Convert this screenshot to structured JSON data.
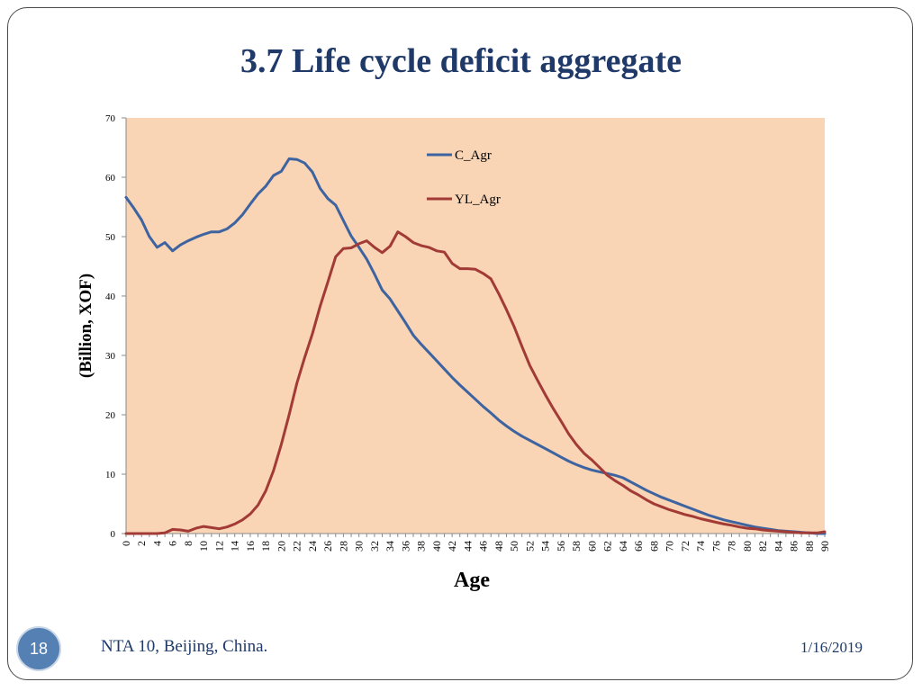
{
  "slide": {
    "title": "3.7 Life cycle deficit aggregate",
    "page_number": "18",
    "footer": "NTA 10, Beijing, China.",
    "date": "1/16/2019"
  },
  "colors": {
    "plot_background": "#f9d4b5",
    "c_agr": "#3d64a0",
    "yl_agr": "#a23a35",
    "axis": "#8a8a8a"
  },
  "chart_data": {
    "type": "line",
    "title": "3.7 Life cycle deficit aggregate",
    "xlabel": "Age",
    "ylabel": "(Billion, XOF)",
    "xlim": [
      0,
      90
    ],
    "ylim": [
      0,
      70
    ],
    "y_ticks": [
      "0",
      "10",
      "20",
      "30",
      "40",
      "50",
      "60",
      "70"
    ],
    "x_ticks": [
      "0",
      "2",
      "4",
      "6",
      "8",
      "10",
      "12",
      "14",
      "16",
      "18",
      "20",
      "22",
      "24",
      "26",
      "28",
      "30",
      "32",
      "34",
      "36",
      "38",
      "40",
      "42",
      "44",
      "46",
      "48",
      "50",
      "52",
      "54",
      "56",
      "58",
      "60",
      "62",
      "64",
      "66",
      "68",
      "70",
      "72",
      "74",
      "76",
      "78",
      "80",
      "82",
      "84",
      "86",
      "88",
      "90"
    ],
    "legend": "top-left inside plot",
    "series": [
      {
        "name": "C_Agr",
        "values": [
          56.6,
          54.8,
          52.8,
          50.0,
          48.2,
          49.0,
          47.6,
          48.6,
          49.3,
          49.9,
          50.4,
          50.8,
          50.8,
          51.3,
          52.3,
          53.7,
          55.5,
          57.2,
          58.5,
          60.3,
          61.0,
          63.1,
          63.0,
          62.4,
          60.9,
          58.1,
          56.4,
          55.3,
          52.7,
          50.1,
          48.2,
          46.2,
          43.7,
          41.0,
          39.5,
          37.5,
          35.5,
          33.4,
          31.9,
          30.5,
          29.1,
          27.7,
          26.3,
          25.0,
          23.8,
          22.6,
          21.4,
          20.3,
          19.1,
          18.1,
          17.2,
          16.4,
          15.7,
          15.0,
          14.3,
          13.6,
          12.9,
          12.2,
          11.6,
          11.1,
          10.7,
          10.4,
          10.1,
          9.8,
          9.4,
          8.7,
          8.0,
          7.3,
          6.7,
          6.1,
          5.6,
          5.1,
          4.6,
          4.1,
          3.6,
          3.1,
          2.7,
          2.3,
          2.0,
          1.7,
          1.4,
          1.1,
          0.9,
          0.7,
          0.5,
          0.4,
          0.3,
          0.2,
          0.1,
          0.0,
          0.0
        ]
      },
      {
        "name": "YL_Agr",
        "values": [
          0.0,
          0.0,
          0.0,
          0.0,
          0.0,
          0.1,
          0.7,
          0.6,
          0.4,
          0.9,
          1.2,
          1.0,
          0.8,
          1.1,
          1.6,
          2.3,
          3.3,
          4.8,
          7.2,
          10.6,
          15.0,
          20.0,
          25.3,
          29.6,
          33.6,
          38.3,
          42.4,
          46.6,
          48.0,
          48.1,
          48.8,
          49.3,
          48.2,
          47.3,
          48.4,
          50.8,
          50.0,
          49.0,
          48.5,
          48.2,
          47.6,
          47.4,
          45.5,
          44.6,
          44.6,
          44.5,
          43.8,
          42.9,
          40.4,
          37.7,
          34.8,
          31.5,
          28.3,
          25.8,
          23.4,
          21.1,
          19.0,
          16.8,
          15.0,
          13.5,
          12.4,
          11.1,
          9.8,
          8.9,
          8.1,
          7.2,
          6.5,
          5.7,
          5.0,
          4.5,
          4.0,
          3.6,
          3.2,
          2.9,
          2.5,
          2.2,
          1.9,
          1.6,
          1.4,
          1.1,
          0.9,
          0.8,
          0.6,
          0.5,
          0.4,
          0.3,
          0.2,
          0.1,
          0.1,
          0.1,
          0.3
        ]
      }
    ]
  }
}
